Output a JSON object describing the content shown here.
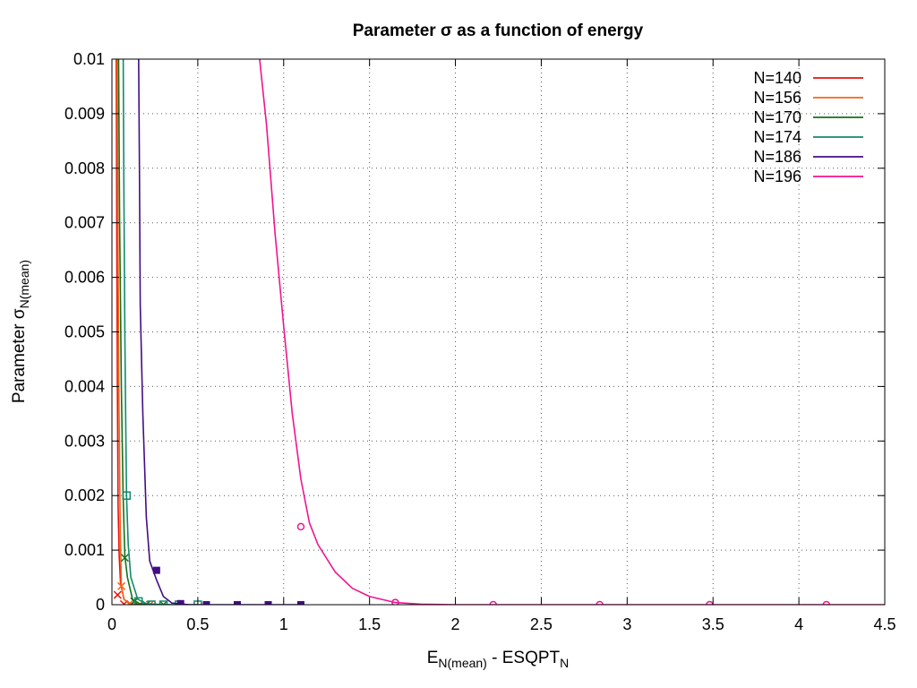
{
  "chart_data": {
    "type": "line",
    "title": "Parameter σ as a function of energy",
    "xlabel": {
      "main": "E",
      "sub1": "N(mean)",
      "mid": " - ESQPT",
      "sub2": "N"
    },
    "ylabel": {
      "main": "Parameter σ",
      "sub": "N(mean)"
    },
    "xlim": [
      0,
      4.5
    ],
    "ylim": [
      0,
      0.01
    ],
    "xticks": [
      0,
      0.5,
      1,
      1.5,
      2,
      2.5,
      3,
      3.5,
      4,
      4.5
    ],
    "xtick_labels": [
      "0",
      "0.5",
      "1",
      "1.5",
      "2",
      "2.5",
      "3",
      "3.5",
      "4",
      "4.5"
    ],
    "yticks": [
      0,
      0.001,
      0.002,
      0.003,
      0.004,
      0.005,
      0.006,
      0.007,
      0.008,
      0.009,
      0.01
    ],
    "ytick_labels": [
      "0",
      "0.001",
      "0.002",
      "0.003",
      "0.004",
      "0.005",
      "0.006",
      "0.007",
      "0.008",
      "0.009",
      "0.01"
    ],
    "grid": true,
    "legend_position": "top-right",
    "series": [
      {
        "name": "N=140",
        "color": "#e8130b",
        "marker": "x",
        "curve": [
          [
            0.025,
            0.0103
          ],
          [
            0.028,
            0.007
          ],
          [
            0.032,
            0.004
          ],
          [
            0.036,
            0.0018
          ],
          [
            0.042,
            0.0009
          ],
          [
            0.05,
            0.0004
          ],
          [
            0.07,
            0.0001
          ],
          [
            0.1,
            2e-05
          ],
          [
            0.15,
            0.0
          ]
        ],
        "points": [
          [
            0.033,
            0.00018
          ],
          [
            0.07,
            1e-05
          ],
          [
            0.11,
            0.0
          ]
        ]
      },
      {
        "name": "N=156",
        "color": "#f26718",
        "marker": "x",
        "curve": [
          [
            0.03,
            0.0103
          ],
          [
            0.035,
            0.007
          ],
          [
            0.04,
            0.004
          ],
          [
            0.048,
            0.0015
          ],
          [
            0.055,
            0.00035
          ],
          [
            0.07,
            0.0001
          ],
          [
            0.1,
            2e-05
          ],
          [
            0.15,
            0.0
          ],
          [
            0.3,
            0.0
          ]
        ],
        "points": [
          [
            0.055,
            0.00034
          ],
          [
            0.1,
            1e-05
          ],
          [
            0.16,
            0.0
          ],
          [
            0.22,
            0.0
          ]
        ]
      },
      {
        "name": "N=170",
        "color": "#137318",
        "marker": "x",
        "curve": [
          [
            0.038,
            0.0103
          ],
          [
            0.045,
            0.007
          ],
          [
            0.055,
            0.004
          ],
          [
            0.065,
            0.002
          ],
          [
            0.075,
            0.0009
          ],
          [
            0.09,
            0.0005
          ],
          [
            0.12,
            0.0001
          ],
          [
            0.16,
            2e-05
          ],
          [
            0.25,
            0.0
          ],
          [
            0.35,
            0.0
          ]
        ],
        "points": [
          [
            0.075,
            0.00086
          ],
          [
            0.13,
            6e-05
          ],
          [
            0.2,
            0.0
          ],
          [
            0.3,
            0.0
          ]
        ]
      },
      {
        "name": "N=174",
        "color": "#128a6c",
        "marker": "square",
        "curve": [
          [
            0.065,
            0.0103
          ],
          [
            0.07,
            0.0075
          ],
          [
            0.075,
            0.005
          ],
          [
            0.08,
            0.0035
          ],
          [
            0.085,
            0.002
          ],
          [
            0.095,
            0.0011
          ],
          [
            0.11,
            0.0005
          ],
          [
            0.15,
            0.0001
          ],
          [
            0.2,
            2e-05
          ],
          [
            0.3,
            0.0
          ],
          [
            0.5,
            0.0
          ]
        ],
        "points": [
          [
            0.085,
            0.002
          ],
          [
            0.155,
            6e-05
          ],
          [
            0.23,
            0.0
          ],
          [
            0.3,
            0.0
          ],
          [
            0.39,
            0.0
          ],
          [
            0.5,
            0.0
          ]
        ]
      },
      {
        "name": "N=186",
        "color": "#420e84",
        "marker": "filled-square",
        "curve": [
          [
            0.155,
            0.0103
          ],
          [
            0.16,
            0.008
          ],
          [
            0.165,
            0.0055
          ],
          [
            0.18,
            0.0035
          ],
          [
            0.2,
            0.0016
          ],
          [
            0.22,
            0.0008
          ],
          [
            0.26,
            0.00045
          ],
          [
            0.3,
            0.00015
          ],
          [
            0.35,
            3e-05
          ],
          [
            0.45,
            0.0
          ],
          [
            0.7,
            0.0
          ],
          [
            1.1,
            0.0
          ]
        ],
        "points": [
          [
            0.26,
            0.00063
          ],
          [
            0.4,
            2e-05
          ],
          [
            0.55,
            0.0
          ],
          [
            0.73,
            0.0
          ],
          [
            0.91,
            0.0
          ],
          [
            1.1,
            0.0
          ]
        ]
      },
      {
        "name": "N=196",
        "color": "#f0158f",
        "marker": "circle",
        "curve": [
          [
            0.85,
            0.0103
          ],
          [
            0.9,
            0.0088
          ],
          [
            0.95,
            0.0068
          ],
          [
            1.0,
            0.0051
          ],
          [
            1.05,
            0.0035
          ],
          [
            1.1,
            0.0023
          ],
          [
            1.15,
            0.0015
          ],
          [
            1.2,
            0.0011
          ],
          [
            1.3,
            0.0006
          ],
          [
            1.4,
            0.0003
          ],
          [
            1.5,
            0.00015
          ],
          [
            1.65,
            4e-05
          ],
          [
            1.8,
            1e-05
          ],
          [
            2.0,
            0.0
          ],
          [
            3.0,
            0.0
          ],
          [
            4.5,
            0.0
          ]
        ],
        "points": [
          [
            1.1,
            0.00143
          ],
          [
            1.65,
            4e-05
          ],
          [
            2.22,
            0.0
          ],
          [
            2.84,
            0.0
          ],
          [
            3.48,
            0.0
          ],
          [
            4.16,
            0.0
          ]
        ]
      }
    ]
  }
}
